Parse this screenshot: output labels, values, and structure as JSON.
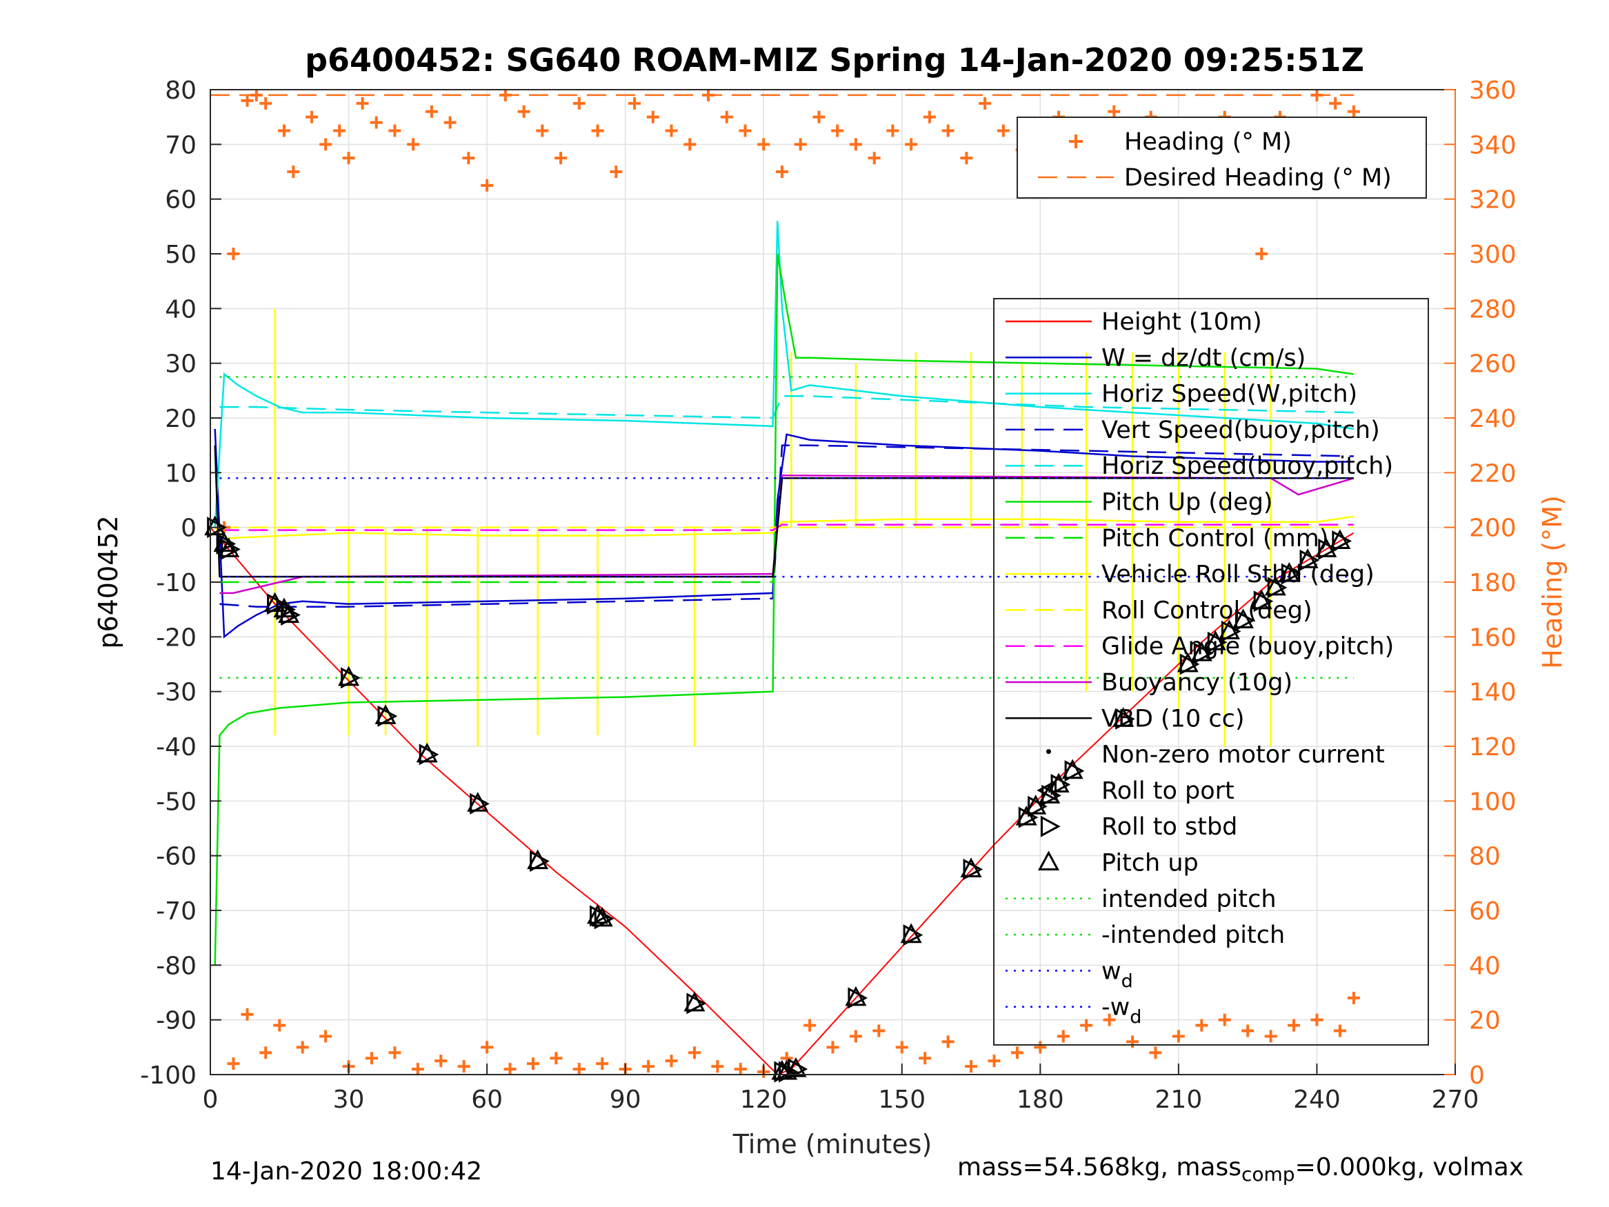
{
  "title": "p6400452: SG640 ROAM-MIZ Spring 14-Jan-2020 09:25:51Z",
  "footer_left": "14-Jan-2020 18:00:42",
  "footer_right_prefix": "mass=54.568kg, mass",
  "footer_right_sub": "comp",
  "footer_right_suffix": "=0.000kg, volmax",
  "chart_data": {
    "type": "line",
    "title": "p6400452: SG640 ROAM-MIZ Spring 14-Jan-2020 09:25:51Z",
    "xlabel": "Time (minutes)",
    "ylabel_left": "p6400452",
    "ylabel_right": "Heading (°M)",
    "xlim": [
      0,
      270
    ],
    "ylim_left": [
      -100,
      80
    ],
    "ylim_right": [
      0,
      360
    ],
    "x_ticks": [
      0,
      30,
      60,
      90,
      120,
      150,
      180,
      210,
      240,
      270
    ],
    "y_ticks_left": [
      -100,
      -90,
      -80,
      -70,
      -60,
      -50,
      -40,
      -30,
      -20,
      -10,
      0,
      10,
      20,
      30,
      40,
      50,
      60,
      70,
      80
    ],
    "y_ticks_right": [
      0,
      20,
      40,
      60,
      80,
      100,
      120,
      140,
      160,
      180,
      200,
      220,
      240,
      260,
      280,
      300,
      320,
      340,
      360
    ],
    "grid": true,
    "legend_right_axis": [
      {
        "name": "Heading (° M)",
        "color": "#ff6f1a",
        "style": "plus"
      },
      {
        "name": "Desired Heading (° M)",
        "color": "#ff6f1a",
        "style": "dash"
      }
    ],
    "legend_left_axis": [
      {
        "name": "Height (10m)",
        "color": "#ff0000",
        "style": "solid"
      },
      {
        "name": "W = dz/dt (cm/s)",
        "color": "#0000cc",
        "style": "solid"
      },
      {
        "name": "Horiz Speed(W,pitch)",
        "color": "#00e5e5",
        "style": "solid"
      },
      {
        "name": "Vert Speed(buoy,pitch)",
        "color": "#0000cc",
        "style": "dash"
      },
      {
        "name": "Horiz Speed(buoy,pitch)",
        "color": "#00e5e5",
        "style": "dash"
      },
      {
        "name": "Pitch Up (deg)",
        "color": "#00e000",
        "style": "solid"
      },
      {
        "name": "Pitch Control (mm)",
        "color": "#00e000",
        "style": "dash"
      },
      {
        "name": "Vehicle Roll Stbd (deg)",
        "color": "#ffff00",
        "style": "solid"
      },
      {
        "name": "Roll Control (deg)",
        "color": "#ffff00",
        "style": "dash"
      },
      {
        "name": "Glide Angle (buoy,pitch)",
        "color": "#ff00ff",
        "style": "dash"
      },
      {
        "name": "Buoyancy (10g)",
        "color": "#cc00cc",
        "style": "solid"
      },
      {
        "name": "VBD (10 cc)",
        "color": "#000000",
        "style": "solid"
      },
      {
        "name": "Non-zero motor current",
        "color": "#000000",
        "style": "dot-marker"
      },
      {
        "name": "Roll to port",
        "color": "#000000",
        "style": "tri-left"
      },
      {
        "name": "Roll to stbd",
        "color": "#000000",
        "style": "tri-right"
      },
      {
        "name": "Pitch up",
        "color": "#000000",
        "style": "tri-up"
      },
      {
        "name": "intended pitch",
        "color": "#00e000",
        "style": "dotted"
      },
      {
        "name": "-intended pitch",
        "color": "#00e000",
        "style": "dotted"
      },
      {
        "name": "w",
        "sub": "d",
        "color": "#0000ff",
        "style": "dotted"
      },
      {
        "name": "-w",
        "sub": "d",
        "color": "#0000ff",
        "style": "dotted"
      }
    ],
    "series": [
      {
        "name": "Height (10m)",
        "axis": "left",
        "x": [
          0,
          4,
          15,
          30,
          45,
          60,
          75,
          90,
          105,
          123,
          126,
          140,
          155,
          170,
          185,
          200,
          215,
          230,
          240,
          248
        ],
        "y": [
          0,
          -4,
          -15,
          -28,
          -41,
          -52,
          -63,
          -73,
          -85,
          -100,
          -99,
          -86,
          -72,
          -58,
          -45,
          -33,
          -21,
          -10,
          -5,
          -1
        ]
      },
      {
        "name": "W = dz/dt (cm/s)",
        "axis": "left",
        "x": [
          1,
          3,
          6,
          10,
          15,
          20,
          30,
          60,
          90,
          122,
          123,
          125,
          130,
          150,
          180,
          200,
          220,
          240,
          248
        ],
        "y": [
          18,
          -20,
          -18,
          -16,
          -14,
          -13.5,
          -14,
          -13.5,
          -13,
          -12,
          5,
          17,
          16,
          15,
          14,
          13,
          12.5,
          12,
          12
        ]
      },
      {
        "name": "Horiz Speed(W,pitch)",
        "axis": "left",
        "x": [
          1,
          3,
          6,
          10,
          15,
          20,
          30,
          60,
          90,
          122,
          123,
          124,
          126,
          130,
          150,
          180,
          200,
          220,
          240,
          248
        ],
        "y": [
          0,
          28,
          26,
          24,
          22,
          21,
          21,
          20,
          19.5,
          18.5,
          56,
          40,
          25,
          26,
          24,
          22,
          21,
          20,
          19,
          18
        ]
      },
      {
        "name": "Vert Speed(buoy,pitch)",
        "axis": "left",
        "x": [
          2,
          10,
          30,
          60,
          90,
          122,
          124,
          130,
          160,
          190,
          220,
          248
        ],
        "y": [
          -14,
          -14.5,
          -14.5,
          -14,
          -13.5,
          -13,
          15,
          15,
          14.5,
          14,
          13.5,
          13
        ]
      },
      {
        "name": "Horiz Speed(buoy,pitch)",
        "axis": "left",
        "x": [
          2,
          10,
          30,
          60,
          90,
          122,
          124,
          130,
          160,
          190,
          220,
          248
        ],
        "y": [
          22,
          22,
          21.5,
          21,
          20.5,
          20,
          24,
          24,
          23,
          22,
          21.5,
          21
        ]
      },
      {
        "name": "Pitch Up (deg)",
        "axis": "left",
        "x": [
          1,
          2,
          4,
          8,
          15,
          30,
          60,
          90,
          122,
          123,
          125,
          127,
          130,
          150,
          180,
          210,
          240,
          248
        ],
        "y": [
          -80,
          -38,
          -36,
          -34,
          -33,
          -32,
          -31.5,
          -31,
          -30,
          50,
          40,
          31,
          31,
          30.5,
          30,
          29.5,
          29,
          28
        ]
      },
      {
        "name": "Pitch Control (mm)",
        "axis": "left",
        "x": [
          2,
          60,
          122,
          124,
          248
        ],
        "y": [
          -10,
          -10,
          -10,
          9,
          9
        ]
      },
      {
        "name": "Vehicle Roll Stbd (deg)",
        "axis": "left",
        "x": [
          1,
          3,
          30,
          60,
          90,
          122,
          124,
          150,
          180,
          210,
          240,
          248
        ],
        "y": [
          0,
          -2,
          -1,
          -1.5,
          -1.5,
          -1,
          1,
          1.5,
          1.5,
          1,
          1,
          2
        ]
      },
      {
        "name": "Roll Control (deg)",
        "axis": "left",
        "x": [
          2,
          122,
          124,
          248
        ],
        "y": [
          0,
          0,
          0,
          0
        ]
      },
      {
        "name": "Glide Angle (buoy,pitch)",
        "axis": "left",
        "x": [
          2,
          122,
          124,
          248
        ],
        "y": [
          -0.5,
          -0.5,
          0.5,
          0.5
        ]
      },
      {
        "name": "Buoyancy (10g)",
        "axis": "left",
        "x": [
          2,
          5,
          20,
          122,
          124,
          230,
          236,
          248
        ],
        "y": [
          -12,
          -12,
          -9,
          -8.5,
          9.5,
          9,
          6,
          9
        ]
      },
      {
        "name": "VBD (10 cc)",
        "axis": "left",
        "x": [
          1,
          2,
          122,
          124,
          248
        ],
        "y": [
          15,
          -9,
          -9,
          9,
          9
        ]
      },
      {
        "name": "intended pitch",
        "axis": "left",
        "x": [
          2,
          248
        ],
        "y": [
          27.5,
          27.5
        ]
      },
      {
        "name": "-intended pitch",
        "axis": "left",
        "x": [
          2,
          248
        ],
        "y": [
          -27.5,
          -27.5
        ]
      },
      {
        "name": "w_d",
        "axis": "left",
        "x": [
          2,
          248
        ],
        "y": [
          9,
          9
        ]
      },
      {
        "name": "-w_d",
        "axis": "left",
        "x": [
          2,
          248
        ],
        "y": [
          -9,
          -9
        ]
      },
      {
        "name": "Desired Heading (° M)",
        "axis": "right",
        "x": [
          0,
          248
        ],
        "y": [
          358,
          358
        ]
      }
    ],
    "roll_spikes_yellow": {
      "x": [
        14,
        30,
        38,
        47,
        58,
        71,
        84,
        105,
        126,
        140,
        153,
        165,
        176,
        190,
        200,
        210,
        220,
        230
      ],
      "low": [
        -38,
        -38,
        -38,
        -40,
        -40,
        -38,
        -38,
        -40,
        0,
        0,
        0,
        0,
        0,
        -30,
        -30,
        -35,
        -40,
        -40
      ],
      "high": [
        40,
        0,
        0,
        0,
        0,
        0,
        0,
        0,
        32,
        30,
        32,
        32,
        30,
        32,
        32,
        32,
        32,
        32
      ]
    },
    "pitch_up_markers": {
      "x": [
        1,
        3,
        4,
        14,
        16,
        17,
        30,
        38,
        47,
        58,
        71,
        84,
        85,
        105,
        124,
        125,
        127,
        140,
        152,
        165,
        177,
        179,
        182,
        184,
        187,
        198,
        212,
        215,
        218,
        221,
        224,
        228,
        231,
        234,
        238,
        242,
        245
      ],
      "y": [
        0,
        -3,
        -4,
        -14,
        -15,
        -16,
        -27.5,
        -34.5,
        -41.5,
        -50.5,
        -61,
        -71,
        -71.5,
        -87,
        -99.5,
        -99.5,
        -99,
        -86,
        -74.5,
        -62.5,
        -53,
        -51,
        -49,
        -47,
        -44.5,
        -35,
        -25,
        -23,
        -21,
        -19,
        -17,
        -13.5,
        -11,
        -8.5,
        -6,
        -4,
        -2.5
      ]
    },
    "heading_upper": {
      "x": [
        3,
        5,
        8,
        10,
        12,
        16,
        18,
        22,
        25,
        28,
        30,
        33,
        36,
        40,
        44,
        48,
        52,
        56,
        60,
        64,
        68,
        72,
        76,
        80,
        84,
        88,
        92,
        96,
        100,
        104,
        108,
        112,
        116,
        120,
        124,
        128,
        132,
        136,
        140,
        144,
        148,
        152,
        156,
        160,
        164,
        168,
        172,
        176,
        180,
        184,
        188,
        192,
        196,
        200,
        204,
        208,
        212,
        216,
        220,
        224,
        228,
        232,
        236,
        240,
        244,
        248
      ],
      "y": [
        200,
        300,
        356,
        358,
        355,
        345,
        330,
        350,
        340,
        345,
        335,
        355,
        348,
        345,
        340,
        352,
        348,
        335,
        325,
        358,
        352,
        345,
        335,
        355,
        345,
        330,
        355,
        350,
        345,
        340,
        358,
        350,
        345,
        340,
        330,
        340,
        350,
        345,
        340,
        335,
        345,
        340,
        350,
        345,
        335,
        355,
        345,
        338,
        330,
        350,
        340,
        345,
        352,
        345,
        350,
        340,
        330,
        345,
        350,
        340,
        300,
        350,
        345,
        358,
        355,
        352
      ]
    },
    "heading_lower": {
      "x": [
        5,
        8,
        12,
        15,
        20,
        25,
        30,
        35,
        40,
        45,
        50,
        55,
        60,
        65,
        70,
        75,
        80,
        85,
        90,
        95,
        100,
        105,
        110,
        115,
        120,
        125,
        130,
        135,
        140,
        145,
        150,
        155,
        160,
        165,
        170,
        175,
        180,
        185,
        190,
        195,
        200,
        205,
        210,
        215,
        220,
        225,
        230,
        235,
        240,
        245,
        248
      ],
      "y": [
        4,
        22,
        8,
        18,
        10,
        14,
        3,
        6,
        8,
        2,
        5,
        3,
        10,
        2,
        4,
        6,
        2,
        4,
        2,
        3,
        5,
        8,
        3,
        2,
        1,
        6,
        18,
        10,
        14,
        16,
        10,
        6,
        12,
        3,
        5,
        8,
        10,
        14,
        18,
        20,
        12,
        8,
        14,
        18,
        20,
        16,
        14,
        18,
        20,
        16,
        28
      ]
    }
  }
}
